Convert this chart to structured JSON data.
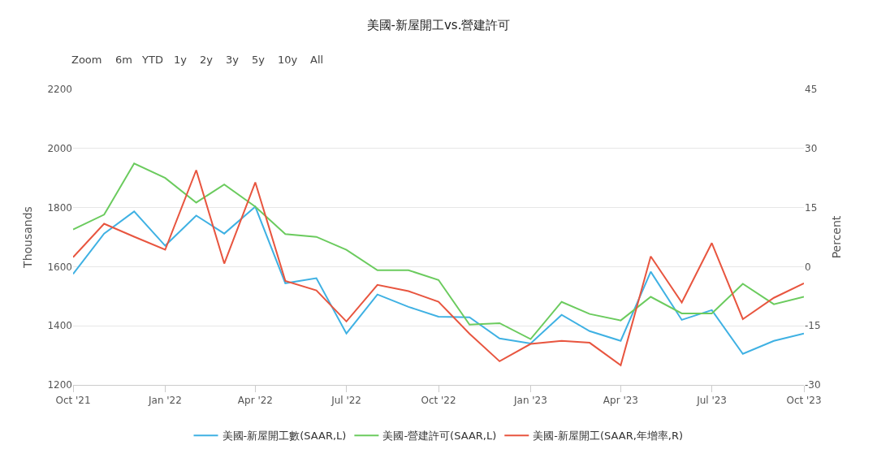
{
  "chart_data": {
    "type": "line",
    "title": "美國-新屋開工vs.營建許可",
    "ylabel": "Thousands",
    "y2label": "Percent",
    "annotations": [
      "Zoom",
      "6m",
      "YTD",
      "1y",
      "2y",
      "3y",
      "5y",
      "10y",
      "All"
    ],
    "x": [
      "2021-10",
      "2021-11",
      "2021-12",
      "2022-01",
      "2022-02",
      "2022-03",
      "2022-04",
      "2022-05",
      "2022-06",
      "2022-07",
      "2022-08",
      "2022-09",
      "2022-10",
      "2022-11",
      "2022-12",
      "2023-01",
      "2023-02",
      "2023-03",
      "2023-04",
      "2023-05",
      "2023-06",
      "2023-07",
      "2023-08",
      "2023-09",
      "2023-10"
    ],
    "series": [
      {
        "name": "美國-新屋開工數(SAAR,L)",
        "color": "#3fb1e3",
        "values": [
          1575,
          1712,
          1787,
          1671,
          1773,
          1712,
          1803,
          1544,
          1561,
          1374,
          1506,
          1464,
          1431,
          1429,
          1357,
          1340,
          1437,
          1382,
          1349,
          1583,
          1420,
          1453,
          1305,
          1349,
          1374
        ]
      },
      {
        "name": "美國-營建許可(SAAR,L)",
        "color": "#6bcb5e",
        "values": [
          1726,
          1776,
          1949,
          1900,
          1817,
          1878,
          1803,
          1710,
          1701,
          1657,
          1588,
          1588,
          1555,
          1404,
          1409,
          1355,
          1481,
          1440,
          1418,
          1498,
          1442,
          1442,
          1542,
          1473,
          1498
        ]
      },
      {
        "name": "美國-新屋開工(SAAR,年增率,R)",
        "color": "#e8553f",
        "axis": "y2",
        "values": [
          2.4,
          10.9,
          7.6,
          4.3,
          24.5,
          0.8,
          21.4,
          -3.6,
          -6.0,
          -13.9,
          -4.6,
          -6.2,
          -8.9,
          -17.0,
          -24.0,
          -19.6,
          -18.8,
          -19.3,
          -25.0,
          2.6,
          -9.1,
          6.0,
          -13.3,
          -7.9,
          -4.2
        ]
      }
    ],
    "xlim": [
      "2021-10",
      "2023-10"
    ],
    "xticks": [
      {
        "value": "2021-10",
        "label": "Oct '21"
      },
      {
        "value": "2022-01",
        "label": "Jan '22"
      },
      {
        "value": "2022-04",
        "label": "Apr '22"
      },
      {
        "value": "2022-07",
        "label": "Jul '22"
      },
      {
        "value": "2022-10",
        "label": "Oct '22"
      },
      {
        "value": "2023-01",
        "label": "Jan '23"
      },
      {
        "value": "2023-04",
        "label": "Apr '23"
      },
      {
        "value": "2023-07",
        "label": "Jul '23"
      },
      {
        "value": "2023-10",
        "label": "Oct '23"
      }
    ],
    "ylim": [
      1200,
      2200
    ],
    "yticks": [
      1200,
      1400,
      1600,
      1800,
      2000,
      2200
    ],
    "y2lim": [
      -30,
      45
    ],
    "y2ticks": [
      -30,
      -15,
      0,
      15,
      30,
      45
    ],
    "grid": "y",
    "legend": "bottom",
    "marker": "none",
    "line_style": "solid"
  }
}
